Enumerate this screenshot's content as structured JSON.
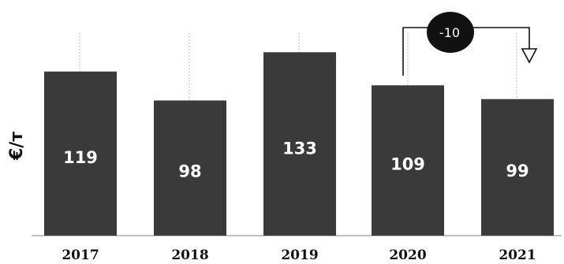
{
  "chart_data": {
    "type": "bar",
    "categories": [
      "2017",
      "2018",
      "2019",
      "2020",
      "2021"
    ],
    "values": [
      119,
      98,
      133,
      109,
      99
    ],
    "ylabel": "€/т",
    "annotation": {
      "text": "-10",
      "from": "2020",
      "to": "2021"
    },
    "colors": {
      "bar": "#3a3a3a",
      "value_text": "#ffffff",
      "annotation": "#111111"
    }
  }
}
